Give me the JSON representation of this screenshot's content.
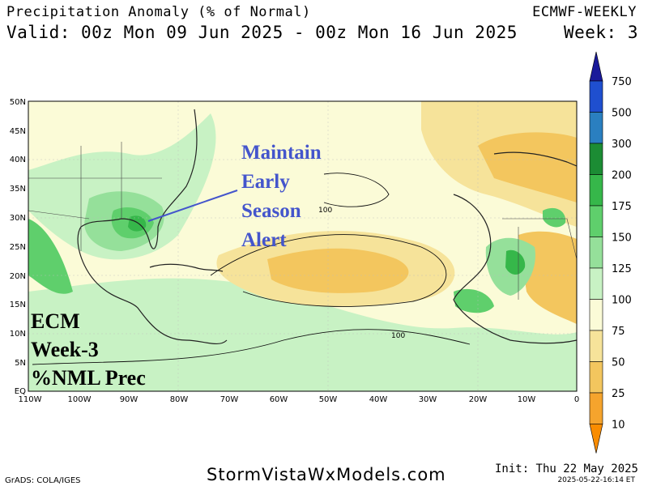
{
  "header": {
    "title": "Precipitation Anomaly (% of Normal)",
    "valid": "Valid: 00z Mon 09 Jun 2025 - 00z Mon 16 Jun 2025",
    "model": "ECMWF-WEEKLY",
    "week": "Week: 3"
  },
  "map": {
    "lat_labels": [
      "50N",
      "45N",
      "40N",
      "35N",
      "30N",
      "25N",
      "20N",
      "15N",
      "10N",
      "5N",
      "EQ"
    ],
    "lon_labels": [
      "110W",
      "100W",
      "90W",
      "80W",
      "70W",
      "60W",
      "50W",
      "40W",
      "30W",
      "20W",
      "10W",
      "0"
    ],
    "contour_labels": [
      "100",
      "100"
    ]
  },
  "annotation": {
    "alert_lines": [
      "Maintain",
      "Early",
      "Season",
      "Alert"
    ],
    "alert_color": "#4455cc",
    "ecm_lines": [
      "ECM",
      "Week-3",
      "%NML Prec"
    ]
  },
  "colorbar": {
    "levels": [
      "750",
      "500",
      "300",
      "200",
      "175",
      "150",
      "125",
      "100",
      "75",
      "50",
      "25",
      "10"
    ],
    "colors": [
      "#1a1a9a",
      "#1f4fcf",
      "#2a7fc0",
      "#1c8c34",
      "#36b74a",
      "#5fcf6c",
      "#95e09a",
      "#c8f2c4",
      "#fbfbd7",
      "#f6e39a",
      "#f3c65e",
      "#f5a42d",
      "#f98c00"
    ]
  },
  "footer": {
    "site": "StormVistaWxModels.com",
    "grads": "GrADS: COLA/IGES",
    "init": "Init: Thu 22 May 2025",
    "stamp": "2025-05-22-16:14 ET"
  }
}
